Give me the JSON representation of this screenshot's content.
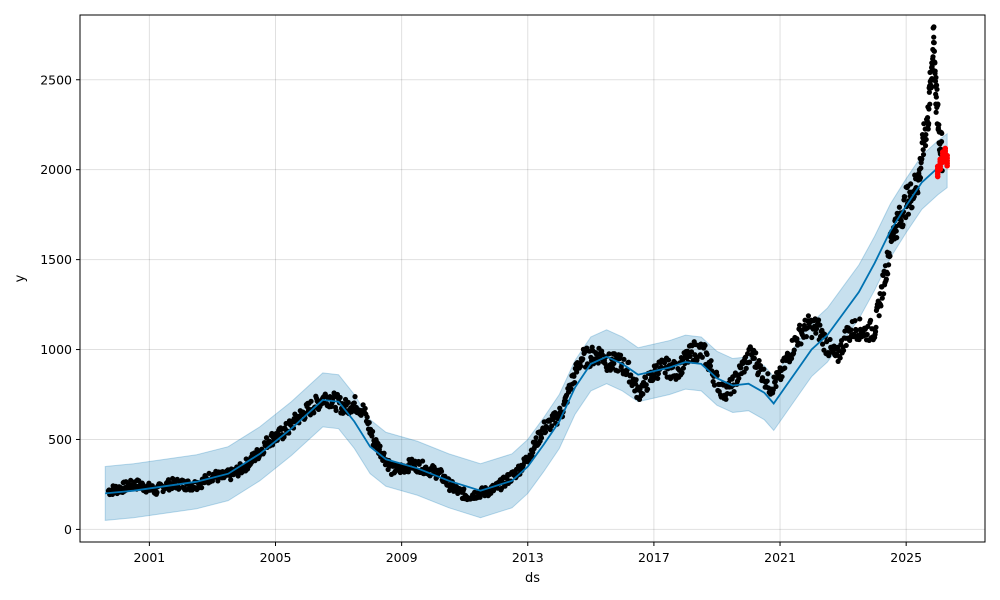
{
  "chart_data": {
    "type": "line",
    "title": "",
    "xlabel": "ds",
    "ylabel": "y",
    "x_ticks": [
      "2001",
      "2005",
      "2009",
      "2013",
      "2017",
      "2021",
      "2025"
    ],
    "y_ticks": [
      "0",
      "500",
      "1000",
      "1500",
      "2000",
      "2500"
    ],
    "xlim": [
      1998.8,
      2027.5
    ],
    "ylim": [
      -70,
      2860
    ],
    "grid": true,
    "series": [
      {
        "role": "observed",
        "color": "#000000",
        "points": [
          [
            1999.7,
            215
          ],
          [
            2000.0,
            225
          ],
          [
            2000.3,
            240
          ],
          [
            2000.6,
            250
          ],
          [
            2000.9,
            235
          ],
          [
            2001.2,
            215
          ],
          [
            2001.5,
            245
          ],
          [
            2001.8,
            255
          ],
          [
            2002.1,
            250
          ],
          [
            2002.4,
            245
          ],
          [
            2002.7,
            265
          ],
          [
            2003.0,
            300
          ],
          [
            2003.3,
            290
          ],
          [
            2003.6,
            305
          ],
          [
            2003.9,
            335
          ],
          [
            2004.2,
            380
          ],
          [
            2004.5,
            430
          ],
          [
            2004.8,
            500
          ],
          [
            2005.1,
            520
          ],
          [
            2005.4,
            560
          ],
          [
            2005.7,
            620
          ],
          [
            2006.0,
            660
          ],
          [
            2006.3,
            700
          ],
          [
            2006.6,
            740
          ],
          [
            2006.9,
            710
          ],
          [
            2007.2,
            680
          ],
          [
            2007.5,
            700
          ],
          [
            2007.8,
            660
          ],
          [
            2008.1,
            500
          ],
          [
            2008.4,
            420
          ],
          [
            2008.7,
            330
          ],
          [
            2009.0,
            340
          ],
          [
            2009.3,
            360
          ],
          [
            2009.6,
            350
          ],
          [
            2009.9,
            330
          ],
          [
            2010.2,
            310
          ],
          [
            2010.5,
            250
          ],
          [
            2010.8,
            210
          ],
          [
            2011.1,
            185
          ],
          [
            2011.4,
            200
          ],
          [
            2011.7,
            210
          ],
          [
            2012.0,
            230
          ],
          [
            2012.3,
            270
          ],
          [
            2012.6,
            310
          ],
          [
            2012.9,
            370
          ],
          [
            2013.2,
            460
          ],
          [
            2013.5,
            560
          ],
          [
            2013.8,
            600
          ],
          [
            2014.1,
            660
          ],
          [
            2014.4,
            820
          ],
          [
            2014.7,
            950
          ],
          [
            2015.0,
            960
          ],
          [
            2015.3,
            980
          ],
          [
            2015.6,
            920
          ],
          [
            2015.9,
            930
          ],
          [
            2016.2,
            880
          ],
          [
            2016.5,
            760
          ],
          [
            2016.8,
            820
          ],
          [
            2017.1,
            890
          ],
          [
            2017.4,
            900
          ],
          [
            2017.7,
            880
          ],
          [
            2018.0,
            940
          ],
          [
            2018.3,
            1000
          ],
          [
            2018.6,
            980
          ],
          [
            2018.9,
            860
          ],
          [
            2019.2,
            760
          ],
          [
            2019.5,
            800
          ],
          [
            2019.8,
            900
          ],
          [
            2020.1,
            980
          ],
          [
            2020.4,
            880
          ],
          [
            2020.7,
            790
          ],
          [
            2021.0,
            850
          ],
          [
            2021.3,
            980
          ],
          [
            2021.6,
            1080
          ],
          [
            2021.9,
            1130
          ],
          [
            2022.2,
            1120
          ],
          [
            2022.5,
            1020
          ],
          [
            2022.8,
            950
          ],
          [
            2023.1,
            1080
          ],
          [
            2023.4,
            1120
          ],
          [
            2023.7,
            1100
          ],
          [
            2024.0,
            1110
          ],
          [
            2024.2,
            1300
          ],
          [
            2024.4,
            1480
          ],
          [
            2024.6,
            1680
          ],
          [
            2024.8,
            1720
          ],
          [
            2025.0,
            1820
          ],
          [
            2025.2,
            1870
          ],
          [
            2025.4,
            1950
          ],
          [
            2025.55,
            2150
          ],
          [
            2025.7,
            2300
          ],
          [
            2025.8,
            2550
          ],
          [
            2025.88,
            2730
          ],
          [
            2025.95,
            2400
          ],
          [
            2026.05,
            2200
          ],
          [
            2026.15,
            2080
          ]
        ]
      },
      {
        "role": "fitted",
        "color": "#0072B2",
        "points": [
          [
            1999.6,
            200
          ],
          [
            2000.5,
            215
          ],
          [
            2001.5,
            240
          ],
          [
            2002.5,
            265
          ],
          [
            2003.5,
            310
          ],
          [
            2004.5,
            420
          ],
          [
            2005.5,
            560
          ],
          [
            2006.5,
            720
          ],
          [
            2007.0,
            710
          ],
          [
            2007.5,
            600
          ],
          [
            2008.0,
            460
          ],
          [
            2008.5,
            390
          ],
          [
            2009.5,
            340
          ],
          [
            2010.5,
            270
          ],
          [
            2011.5,
            215
          ],
          [
            2012.5,
            270
          ],
          [
            2013.0,
            350
          ],
          [
            2013.5,
            470
          ],
          [
            2014.0,
            600
          ],
          [
            2014.5,
            790
          ],
          [
            2015.0,
            920
          ],
          [
            2015.5,
            960
          ],
          [
            2016.0,
            920
          ],
          [
            2016.5,
            860
          ],
          [
            2017.0,
            880
          ],
          [
            2017.5,
            900
          ],
          [
            2018.0,
            930
          ],
          [
            2018.5,
            920
          ],
          [
            2019.0,
            840
          ],
          [
            2019.5,
            800
          ],
          [
            2020.0,
            810
          ],
          [
            2020.5,
            760
          ],
          [
            2020.8,
            700
          ],
          [
            2021.2,
            800
          ],
          [
            2021.6,
            900
          ],
          [
            2022.0,
            1000
          ],
          [
            2022.5,
            1080
          ],
          [
            2023.0,
            1200
          ],
          [
            2023.5,
            1320
          ],
          [
            2024.0,
            1480
          ],
          [
            2024.5,
            1660
          ],
          [
            2025.0,
            1800
          ],
          [
            2025.5,
            1930
          ],
          [
            2026.0,
            2010
          ],
          [
            2026.3,
            2050
          ]
        ]
      },
      {
        "role": "forecast_observed",
        "color": "#FF0000",
        "points": [
          [
            2026.0,
            1990
          ],
          [
            2026.08,
            2030
          ],
          [
            2026.16,
            2070
          ],
          [
            2026.24,
            2090
          ],
          [
            2026.3,
            2050
          ]
        ]
      }
    ],
    "uncertainty_band": {
      "color": "#0072B2",
      "half_width": 150
    }
  }
}
